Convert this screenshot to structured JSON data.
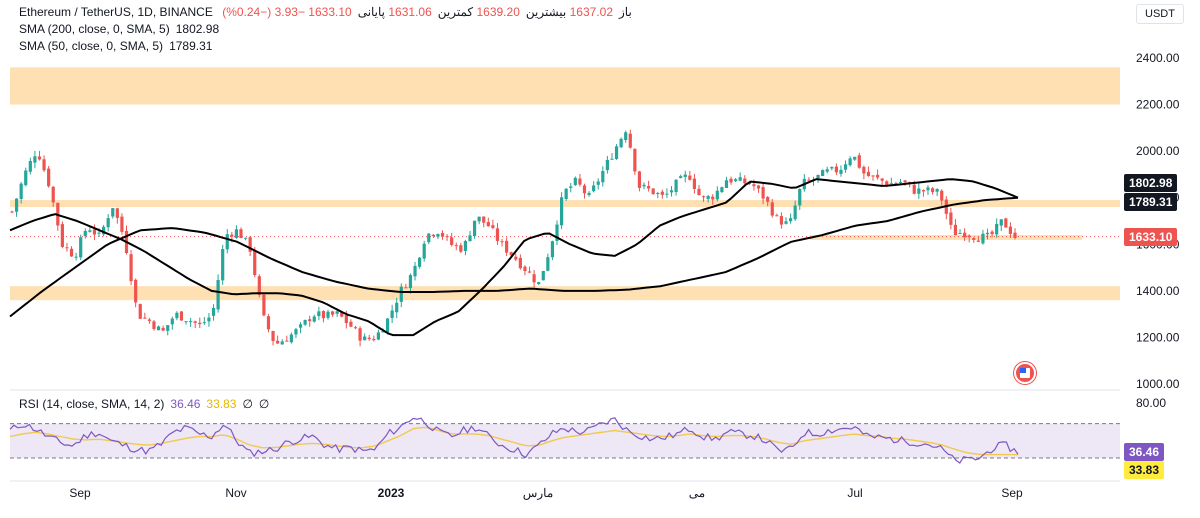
{
  "header": {
    "symbol": "Ethereum / TetherUS, 1D, BINANCE",
    "open_label": "باز",
    "open": "1637.02",
    "high_label": "بیشترین",
    "high": "1639.20",
    "low_label": "کمترین",
    "low": "1631.06",
    "close_label": "پایانی",
    "close": "1633.10",
    "change": "−3.93 (−0.24%)",
    "quote": "USDT"
  },
  "indicators": {
    "sma200_label": "SMA (200, close, 0, SMA, 5)",
    "sma200_value": "1802.98",
    "sma50_label": "SMA (50, close, 0, SMA, 5)",
    "sma50_value": "1789.31",
    "rsi_label": "RSI (14, close, SMA, 14, 2)",
    "rsi_value": "36.46",
    "rsi_ma_value": "33.83",
    "rsi_extra1": "∅",
    "rsi_extra2": "∅"
  },
  "chart_data": [
    {
      "type": "line",
      "name": "price",
      "x": [
        "Sep",
        "Nov",
        "2023",
        "مارس",
        "می",
        "Jul",
        "Sep"
      ],
      "ylim": [
        1000,
        2400
      ],
      "yticks": [
        1000,
        1200,
        1400,
        1600,
        1800,
        2000,
        2200,
        2400
      ],
      "ytick_labels": [
        "1000.00",
        "1200.00",
        "1400.00",
        "1600.00",
        "1800.00",
        "2000.00",
        "2200.00",
        "2400.00"
      ],
      "price_close_path": [
        1740,
        1900,
        2010,
        1850,
        1600,
        1550,
        1680,
        1630,
        1770,
        1620,
        1300,
        1270,
        1220,
        1300,
        1280,
        1250,
        1300,
        1640,
        1660,
        1580,
        1290,
        1170,
        1200,
        1240,
        1300,
        1290,
        1300,
        1250,
        1190,
        1200,
        1280,
        1400,
        1480,
        1640,
        1660,
        1600,
        1580,
        1720,
        1680,
        1600,
        1550,
        1490,
        1430,
        1600,
        1820,
        1870,
        1800,
        1900,
        2000,
        2100,
        1850,
        1830,
        1800,
        1860,
        1900,
        1790,
        1810,
        1880,
        1870,
        1860,
        1800,
        1710,
        1680,
        1860,
        1880,
        1910,
        1920,
        1990,
        1900,
        1880,
        1860,
        1870,
        1830,
        1830,
        1820,
        1650,
        1650,
        1630,
        1630,
        1700,
        1633
      ],
      "sma50_path": [
        1660,
        1700,
        1730,
        1700,
        1660,
        1620,
        1570,
        1510,
        1450,
        1400,
        1385,
        1390,
        1390,
        1380,
        1350,
        1300,
        1270,
        1210,
        1210,
        1270,
        1310,
        1400,
        1500,
        1620,
        1650,
        1600,
        1560,
        1550,
        1600,
        1680,
        1720,
        1750,
        1780,
        1870,
        1860,
        1840,
        1880,
        1870,
        1860,
        1850,
        1860,
        1870,
        1880,
        1870,
        1840,
        1800
      ],
      "sma200_path": [
        1290,
        1400,
        1500,
        1600,
        1660,
        1670,
        1650,
        1610,
        1540,
        1480,
        1440,
        1410,
        1395,
        1395,
        1400,
        1400,
        1410,
        1400,
        1400,
        1405,
        1420,
        1450,
        1480,
        1540,
        1610,
        1640,
        1680,
        1700,
        1740,
        1770,
        1790,
        1800
      ],
      "last_value": "1633.10",
      "sma200_last": "1802.98",
      "sma50_last": "1789.31",
      "resistance_zones": [
        [
          2200,
          2360
        ],
        [
          1760,
          1790
        ],
        [
          1360,
          1420
        ]
      ],
      "support_line": 1633
    },
    {
      "type": "line",
      "name": "RSI",
      "ylim": [
        0,
        100
      ],
      "yticks": [
        80
      ],
      "ytick_labels": [
        "80.00"
      ],
      "band": [
        30,
        70
      ],
      "rsi_path": [
        62,
        70,
        64,
        55,
        48,
        44,
        56,
        60,
        50,
        45,
        40,
        38,
        46,
        60,
        65,
        58,
        55,
        70,
        50,
        35,
        38,
        40,
        48,
        52,
        55,
        45,
        40,
        42,
        38,
        40,
        58,
        66,
        78,
        72,
        60,
        55,
        62,
        66,
        55,
        45,
        40,
        34,
        45,
        58,
        65,
        60,
        62,
        70,
        75,
        62,
        56,
        52,
        54,
        58,
        65,
        55,
        52,
        60,
        58,
        56,
        50,
        38,
        40,
        60,
        58,
        62,
        64,
        66,
        55,
        54,
        52,
        50,
        48,
        46,
        40,
        26,
        28,
        30,
        42,
        45,
        36
      ],
      "rsi_ma_path": [
        55,
        58,
        60,
        58,
        55,
        52,
        51,
        52,
        50,
        48,
        46,
        45,
        47,
        50,
        53,
        55,
        55,
        57,
        52,
        45,
        42,
        42,
        44,
        46,
        47,
        46,
        44,
        42,
        42,
        44,
        50,
        56,
        64,
        66,
        62,
        58,
        58,
        58,
        56,
        52,
        48,
        44,
        45,
        50,
        54,
        56,
        58,
        60,
        62,
        60,
        58,
        56,
        55,
        56,
        58,
        56,
        55,
        56,
        56,
        55,
        52,
        48,
        46,
        50,
        52,
        54,
        56,
        58,
        56,
        55,
        53,
        52,
        50,
        48,
        45,
        40,
        36,
        34,
        34,
        34,
        33.83
      ],
      "last_value": "36.46",
      "ma_last": "33.83"
    }
  ],
  "colors": {
    "up": "#26a69a",
    "down": "#ef5350",
    "sma": "#000000",
    "zone": "#ffe0b2",
    "rsi": "#7e57c2",
    "rsi_ma": "#f2c94c",
    "rsi_band": "#ede7f6",
    "last_tag": "#ef5350",
    "rsi_tag_bg": "#7e57c2",
    "rsi_ma_tag_bg": "#ffeb3b"
  },
  "icons": {
    "event": "us-flag-icon"
  }
}
